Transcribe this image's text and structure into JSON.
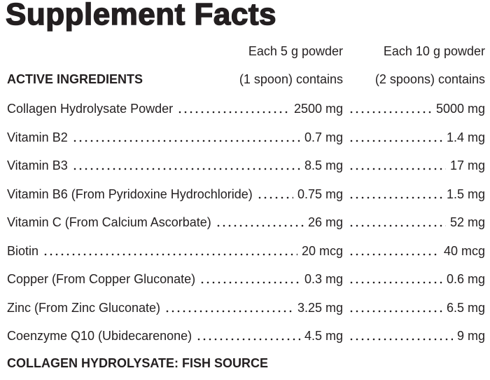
{
  "title": "Supplement Facts",
  "table": {
    "section_header": "ACTIVE INGREDIENTS",
    "column_headers": [
      [
        "Each 5 g powder",
        "(1 spoon) contains"
      ],
      [
        "Each 10 g powder",
        "(2 spoons) contains"
      ]
    ],
    "rows": [
      [
        "Collagen Hydrolysate Powder",
        "2500 mg",
        "5000 mg"
      ],
      [
        "Vitamin B2",
        "0.7 mg",
        "1.4 mg"
      ],
      [
        "Vitamin B3",
        "8.5 mg",
        "17 mg"
      ],
      [
        "Vitamin B6 (From Pyridoxine Hydrochloride)",
        "0.75 mg",
        "1.5 mg"
      ],
      [
        "Vitamin C (From Calcium Ascorbate)",
        "26 mg",
        "52 mg"
      ],
      [
        "Biotin",
        "20 mcg",
        "40 mcg"
      ],
      [
        "Copper (From Copper Gluconate)",
        "0.3 mg",
        "0.6 mg"
      ],
      [
        "Zinc (From Zinc Gluconate)",
        "3.25 mg",
        "6.5 mg"
      ],
      [
        "Coenzyme Q10 (Ubidecarenone)",
        "4.5 mg",
        "9 mg"
      ]
    ]
  },
  "footer": "COLLAGEN HYDROLYSATE: FISH SOURCE"
}
